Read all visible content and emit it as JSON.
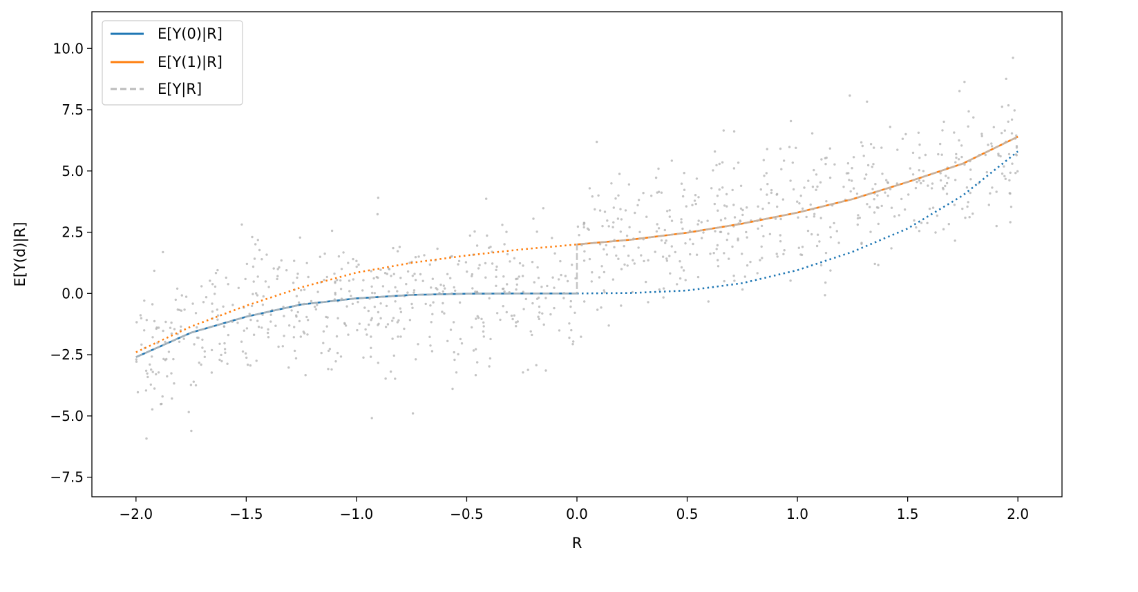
{
  "chart_data": {
    "type": "line",
    "xlabel": "R",
    "ylabel": "E[Y(d)|R]",
    "xlim": [
      -2.2,
      2.2
    ],
    "ylim": [
      -8.3,
      11.5
    ],
    "xticks": [
      -2.0,
      -1.5,
      -1.0,
      -0.5,
      0.0,
      0.5,
      1.0,
      1.5,
      2.0
    ],
    "xtick_labels": [
      "−2.0",
      "−1.5",
      "−1.0",
      "−0.5",
      "0.0",
      "0.5",
      "1.0",
      "1.5",
      "2.0"
    ],
    "yticks": [
      -7.5,
      -5.0,
      -2.5,
      0.0,
      2.5,
      5.0,
      7.5,
      10.0
    ],
    "ytick_labels": [
      "−7.5",
      "−5.0",
      "−2.5",
      "0.0",
      "2.5",
      "5.0",
      "7.5",
      "10.0"
    ],
    "grid": false,
    "legend_position": "top-left",
    "cutoff": 0.0,
    "colors": {
      "y0": "#1f77b4",
      "y1": "#ff7f0e",
      "observed": "#bbbbbb",
      "scatter": "#b0b0b0"
    },
    "series": [
      {
        "name": "E[Y(0)|R]",
        "style": "solid for R < 0, dotted for R ≥ 0",
        "x": [
          -2.0,
          -1.75,
          -1.5,
          -1.25,
          -1.0,
          -0.75,
          -0.5,
          -0.25,
          0.0,
          0.25,
          0.5,
          0.75,
          1.0,
          1.25,
          1.5,
          1.75,
          2.0
        ],
        "y": [
          -2.6,
          -1.6,
          -0.95,
          -0.45,
          -0.2,
          -0.06,
          -0.01,
          0.0,
          0.0,
          0.02,
          0.12,
          0.42,
          0.95,
          1.7,
          2.65,
          4.0,
          5.8
        ]
      },
      {
        "name": "E[Y(1)|R]",
        "style": "dotted for R < 0, solid for R ≥ 0",
        "x": [
          -2.0,
          -1.75,
          -1.5,
          -1.25,
          -1.0,
          -0.75,
          -0.5,
          -0.25,
          0.0,
          0.25,
          0.5,
          0.75,
          1.0,
          1.25,
          1.5,
          1.75,
          2.0
        ],
        "y": [
          -2.4,
          -1.35,
          -0.5,
          0.25,
          0.85,
          1.25,
          1.55,
          1.8,
          2.0,
          2.2,
          2.48,
          2.85,
          3.3,
          3.85,
          4.55,
          5.3,
          6.4
        ]
      },
      {
        "name": "E[Y|R]",
        "style": "dashed gray; follows E[Y(0)|R] for R < 0 and E[Y(1)|R] for R ≥ 0"
      }
    ],
    "scatter": {
      "n_points": 1000,
      "description": "observed samples, std ≈ 1.5 around E[Y|R]"
    }
  }
}
